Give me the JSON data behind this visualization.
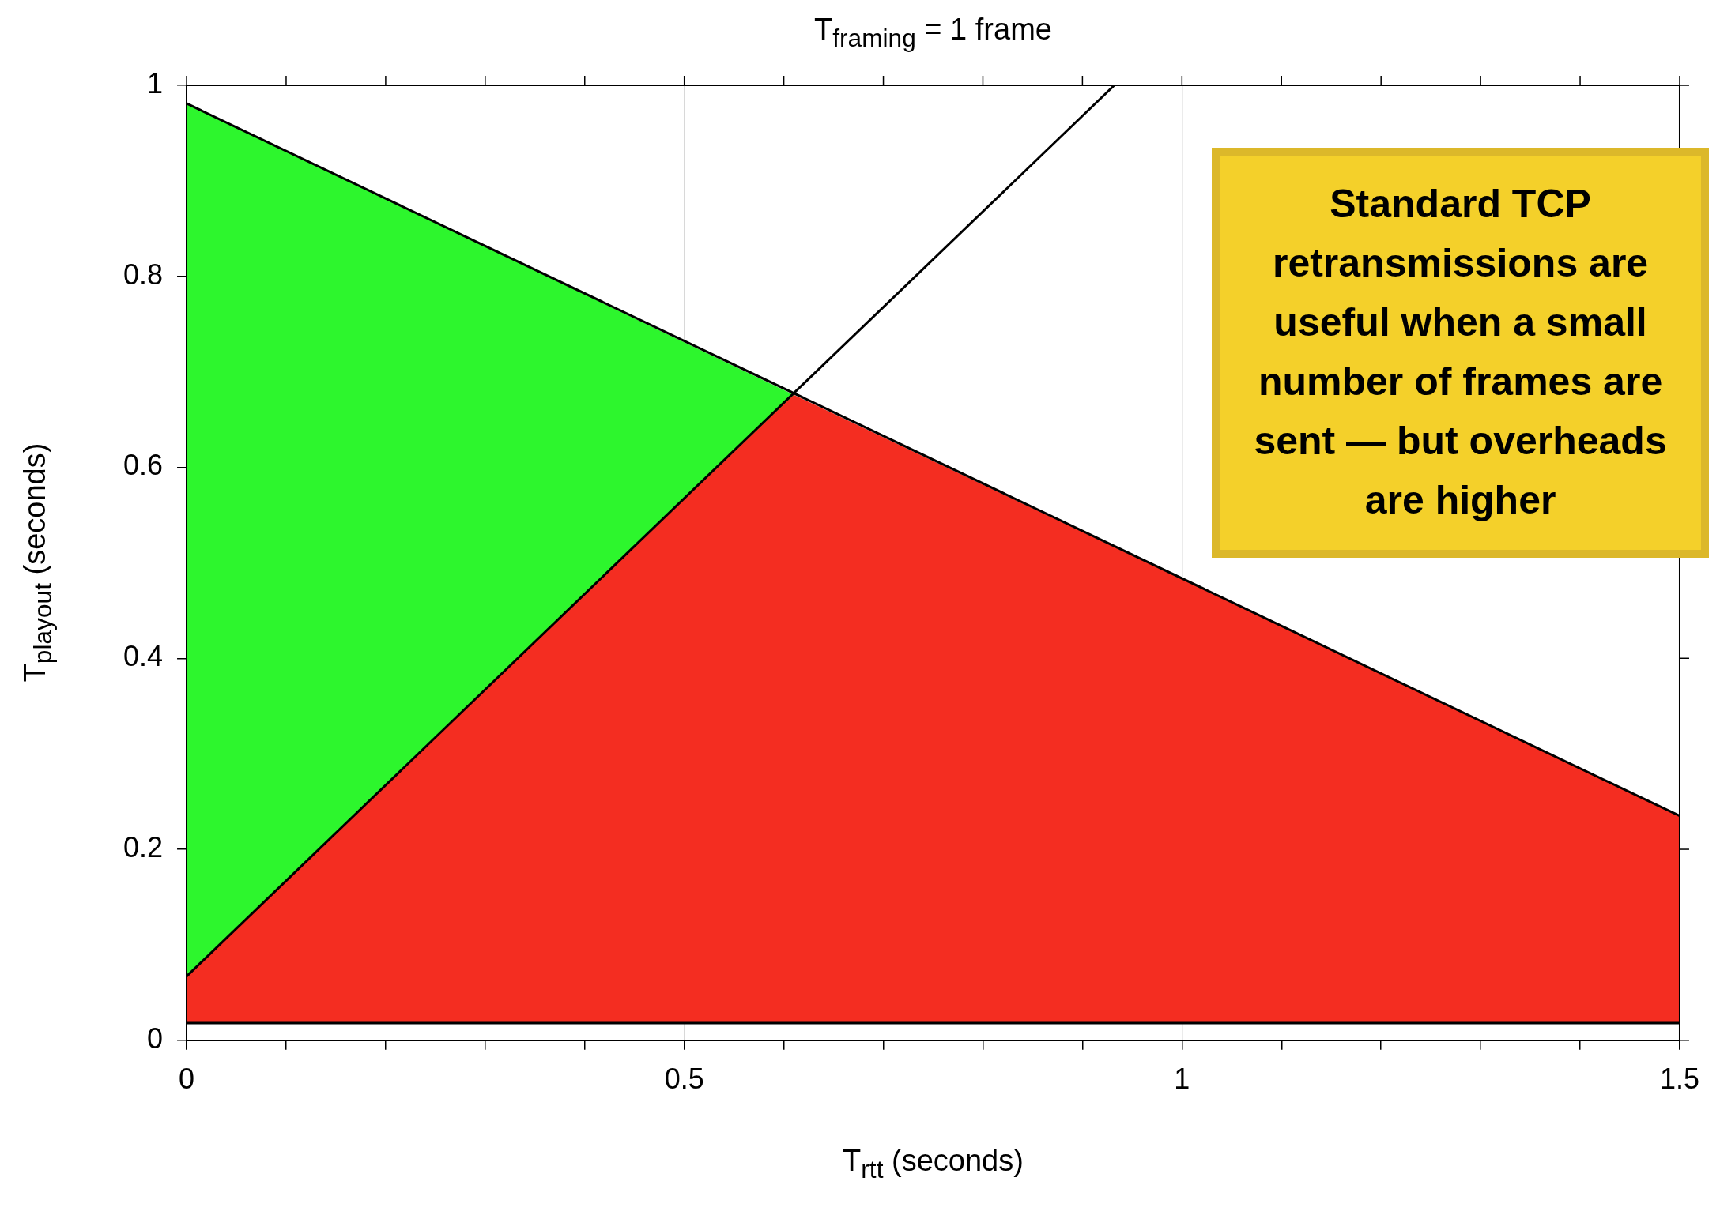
{
  "chart_data": {
    "type": "area",
    "title": "T$_{framing}$ = 1 frame",
    "xlabel": "T$_{rtt}$ (seconds)",
    "ylabel": "T$_{playout}$ (seconds)",
    "xlim": [
      0,
      1.5
    ],
    "ylim": [
      0,
      1
    ],
    "xticks": [
      0,
      {
        "value": 0.1,
        "label": null
      },
      {
        "value": 0.2,
        "label": null
      },
      {
        "value": 0.3,
        "label": null
      },
      {
        "value": 0.4,
        "label": null
      },
      0.5,
      {
        "value": 0.6,
        "label": null
      },
      {
        "value": 0.7,
        "label": null
      },
      {
        "value": 0.8,
        "label": null
      },
      {
        "value": 0.9,
        "label": null
      },
      1,
      {
        "value": 1.1,
        "label": null
      },
      {
        "value": 1.2,
        "label": null
      },
      {
        "value": 1.3,
        "label": null
      },
      {
        "value": 1.4,
        "label": null
      },
      1.5
    ],
    "yticks": [
      0,
      0.2,
      0.4,
      0.6,
      0.8,
      1
    ],
    "grid": "x",
    "series": [
      {
        "color": "#f42d21",
        "x": [
          0,
          0.61,
          1.5
        ],
        "values": [
          0.067,
          0.676,
          0.235
        ]
      },
      {
        "color": "#2df62d",
        "x": [
          0,
          0.61
        ],
        "values": [
          0.981,
          0.676
        ]
      },
      {
        "type": "line",
        "color": "#000000",
        "x": [
          0,
          1.5
        ],
        "values": [
          0.981,
          0.235
        ]
      },
      {
        "type": "line",
        "color": "#000000",
        "x": [
          0,
          0.932
        ],
        "values": [
          0.067,
          1
        ]
      },
      {
        "type": "line",
        "color": "#000000",
        "x": [
          0,
          1.5
        ],
        "values": [
          0.018,
          0.018
        ]
      }
    ],
    "annotations": [
      "Standard TCP retransmissions are useful when a small number of frames are sent — but overheads are higher"
    ]
  }
}
